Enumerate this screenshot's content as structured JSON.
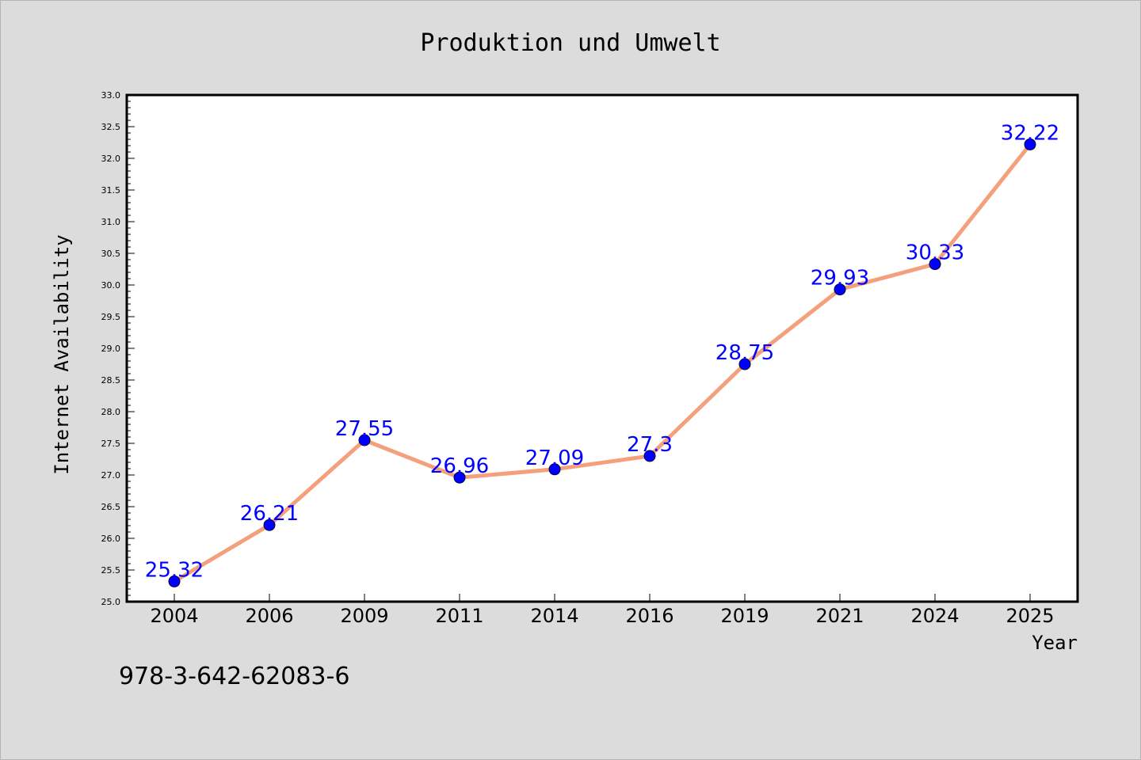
{
  "chart_data": {
    "type": "line",
    "title": "Produktion und Umwelt",
    "xlabel": "Year",
    "ylabel": "Internet Availability",
    "categories": [
      "2004",
      "2006",
      "2009",
      "2011",
      "2014",
      "2016",
      "2019",
      "2021",
      "2024",
      "2025"
    ],
    "series": [
      {
        "values": [
          25.32,
          26.21,
          27.55,
          26.96,
          27.09,
          27.3,
          28.75,
          29.93,
          30.33,
          32.22
        ],
        "labels": [
          "25.32",
          "26.21",
          "27.55",
          "26.96",
          "27.09",
          "27.3",
          "28.75",
          "29.93",
          "30.33",
          "32.22"
        ]
      }
    ],
    "ylim": [
      25.0,
      33.0
    ],
    "yticks": [
      "25.0",
      "25.5",
      "26.0",
      "26.5",
      "27.0",
      "27.5",
      "28.0",
      "28.5",
      "29.0",
      "29.5",
      "30.0",
      "30.5",
      "31.0",
      "31.5",
      "32.0",
      "32.5",
      "33.0"
    ],
    "grid": false,
    "legend": "none",
    "colors": {
      "background": "#dcdcdc",
      "plot_background": "#ffffff",
      "line": "#f4a07c",
      "marker": "#0000ff",
      "data_label": "#0000ff",
      "text": "#000000"
    }
  },
  "annotation": "978-3-642-62083-6"
}
